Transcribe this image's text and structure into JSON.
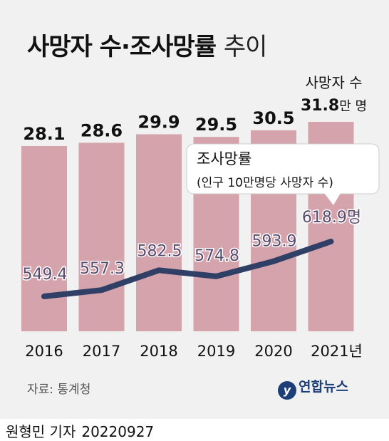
{
  "title": {
    "main": "사망자 수·조사망률",
    "sub": "추이"
  },
  "deaths_annotation": {
    "line1": "사망자 수",
    "value": "31.8",
    "unit": "만 명"
  },
  "callout": {
    "line1": "조사망률",
    "line2": "(인구 10만명당 사망자 수)"
  },
  "rate_unit_suffix": "명",
  "year_suffix": "년",
  "source": "자료: 통계청",
  "logo": {
    "icon": "yonhap-logo-mark",
    "text": "연합뉴스"
  },
  "byline": {
    "author": "원형민 기자",
    "date": "20220927"
  },
  "colors": {
    "bar": "#d4a3ab",
    "line": "#2f3f66",
    "point_label": "#5a4a6e",
    "background": "#f1f1f1"
  },
  "chart_data": {
    "type": "bar",
    "categories": [
      "2016",
      "2017",
      "2018",
      "2019",
      "2020",
      "2021"
    ],
    "series": [
      {
        "name": "사망자 수",
        "unit": "만 명",
        "chart_type": "bar",
        "values": [
          28.1,
          28.6,
          29.9,
          29.5,
          30.5,
          31.8
        ]
      },
      {
        "name": "조사망률",
        "unit": "명",
        "chart_type": "line",
        "values": [
          549.4,
          557.3,
          582.5,
          574.8,
          593.9,
          618.9
        ]
      }
    ],
    "bar_labels": [
      "28.1",
      "28.6",
      "29.9",
      "29.5",
      "30.5"
    ],
    "line_labels": [
      "549.4",
      "557.3",
      "582.5",
      "574.8",
      "593.9",
      "618.9"
    ],
    "grid": false,
    "legend": "none"
  }
}
